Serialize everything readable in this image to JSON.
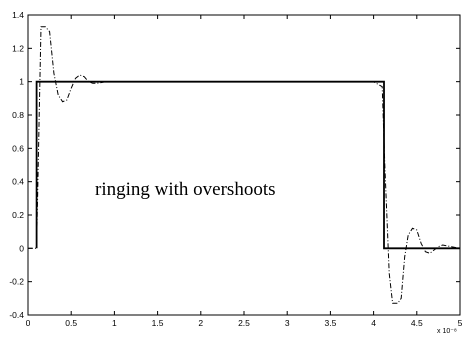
{
  "chart_data": {
    "type": "line",
    "title": "",
    "xlabel": "",
    "ylabel": "",
    "xlim": [
      0,
      5
    ],
    "ylim": [
      -0.4,
      1.4
    ],
    "x_exponent_label": "x 10⁻⁸",
    "x_ticks": [
      "0",
      "0.5",
      "1",
      "1.5",
      "2",
      "2.5",
      "3",
      "3.5",
      "4",
      "4.5",
      "5"
    ],
    "y_ticks": [
      "-0.4",
      "-0.2",
      "0",
      "0.2",
      "0.4",
      "0.6",
      "0.8",
      "1",
      "1.2",
      "1.4"
    ],
    "annotation": "ringing with overshoots",
    "grid": false,
    "series": [
      {
        "style": "solid",
        "x": [
          0.1,
          0.1,
          4.12,
          4.12,
          5.0
        ],
        "y": [
          0.0,
          1.0,
          1.0,
          0.0,
          0.0
        ]
      },
      {
        "style": "dash-dot",
        "x": [
          0.0,
          0.1,
          0.13,
          0.15,
          0.2,
          0.25,
          0.3,
          0.35,
          0.4,
          0.45,
          0.5,
          0.55,
          0.6,
          0.65,
          0.7,
          0.75,
          0.8,
          0.9,
          1.0,
          4.0,
          4.1,
          4.13,
          4.18,
          4.22,
          4.28,
          4.32,
          4.36,
          4.4,
          4.45,
          4.5,
          4.55,
          4.6,
          4.65,
          4.7,
          4.75,
          4.8,
          4.9,
          5.0
        ],
        "y": [
          0.0,
          0.0,
          0.8,
          1.33,
          1.33,
          1.3,
          1.05,
          0.92,
          0.88,
          0.89,
          0.96,
          1.02,
          1.04,
          1.03,
          1.0,
          0.99,
          0.99,
          1.0,
          1.0,
          1.0,
          0.97,
          0.5,
          -0.15,
          -0.33,
          -0.33,
          -0.3,
          -0.05,
          0.08,
          0.12,
          0.11,
          0.03,
          -0.02,
          -0.03,
          -0.01,
          0.01,
          0.02,
          0.01,
          0.0
        ]
      }
    ]
  }
}
